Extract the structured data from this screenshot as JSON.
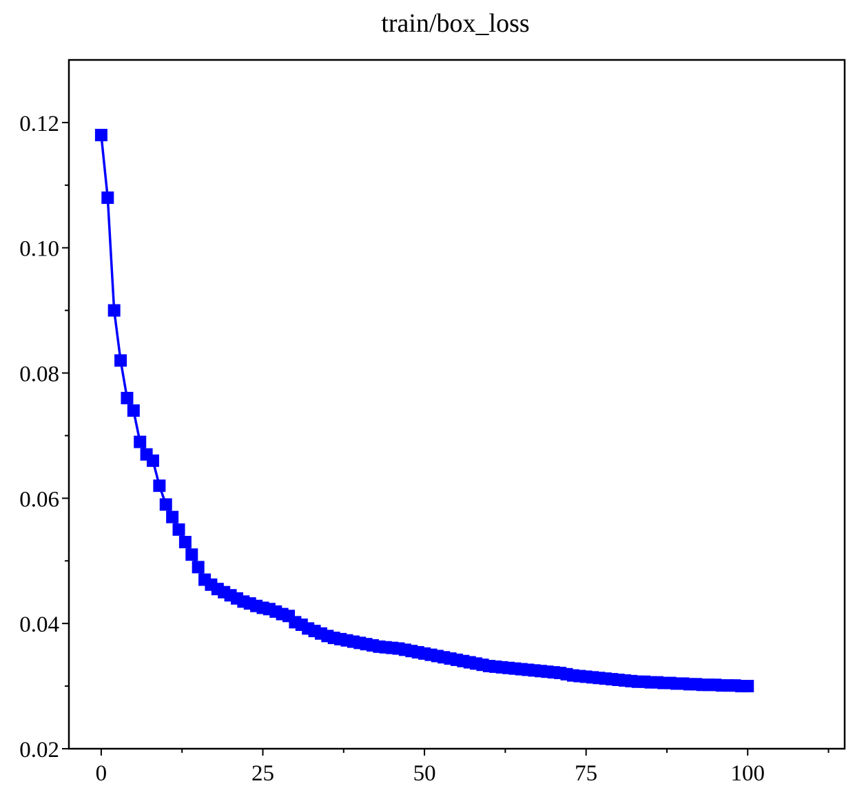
{
  "chart_data": {
    "type": "line",
    "title": "train/box_loss",
    "xlabel": "",
    "ylabel": "",
    "xlim": [
      -5,
      115
    ],
    "ylim": [
      0.02,
      0.13
    ],
    "x_ticks": [
      0,
      25,
      50,
      75,
      100
    ],
    "x_tick_labels": [
      "0",
      "25",
      "50",
      "75",
      "100"
    ],
    "y_ticks": [
      0.02,
      0.04,
      0.06,
      0.08,
      0.1,
      0.12
    ],
    "y_tick_labels": [
      "0.02",
      "0.04",
      "0.06",
      "0.08",
      "0.10",
      "0.12"
    ],
    "grid": false,
    "marker": "square",
    "series": [
      {
        "color": "#0000ff",
        "x": [
          0,
          1,
          2,
          3,
          4,
          5,
          6,
          7,
          8,
          9,
          10,
          11,
          12,
          13,
          14,
          15,
          16,
          17,
          18,
          19,
          20,
          21,
          22,
          23,
          24,
          25,
          26,
          27,
          28,
          29,
          30,
          31,
          32,
          33,
          34,
          35,
          36,
          37,
          38,
          39,
          40,
          41,
          42,
          43,
          44,
          45,
          46,
          47,
          48,
          49,
          50,
          51,
          52,
          53,
          54,
          55,
          56,
          57,
          58,
          59,
          60,
          61,
          62,
          63,
          64,
          65,
          66,
          67,
          68,
          69,
          70,
          71,
          72,
          73,
          74,
          75,
          76,
          77,
          78,
          79,
          80,
          81,
          82,
          83,
          84,
          85,
          86,
          87,
          88,
          89,
          90,
          91,
          92,
          93,
          94,
          95,
          96,
          97,
          98,
          99,
          100
        ],
        "y": [
          0.118,
          0.108,
          0.09,
          0.082,
          0.076,
          0.074,
          0.069,
          0.067,
          0.066,
          0.062,
          0.059,
          0.057,
          0.055,
          0.053,
          0.051,
          0.049,
          0.047,
          0.0462,
          0.0455,
          0.045,
          0.0445,
          0.044,
          0.0435,
          0.0432,
          0.0428,
          0.0425,
          0.0423,
          0.0419,
          0.0415,
          0.0412,
          0.0402,
          0.0398,
          0.0392,
          0.0388,
          0.0384,
          0.038,
          0.0377,
          0.0375,
          0.0373,
          0.0371,
          0.0369,
          0.0367,
          0.0365,
          0.0363,
          0.0362,
          0.0361,
          0.036,
          0.0358,
          0.0356,
          0.0354,
          0.0352,
          0.035,
          0.0348,
          0.0346,
          0.0344,
          0.0342,
          0.034,
          0.0338,
          0.0336,
          0.0334,
          0.0332,
          0.0331,
          0.033,
          0.0329,
          0.0328,
          0.0327,
          0.0326,
          0.0325,
          0.0324,
          0.0323,
          0.0322,
          0.0321,
          0.0319,
          0.0317,
          0.0316,
          0.0315,
          0.0314,
          0.0313,
          0.0312,
          0.0311,
          0.031,
          0.0309,
          0.0308,
          0.0307,
          0.0307,
          0.0306,
          0.0306,
          0.0305,
          0.0305,
          0.0304,
          0.0304,
          0.0303,
          0.0303,
          0.0302,
          0.0302,
          0.0302,
          0.0301,
          0.0301,
          0.0301,
          0.03,
          0.03
        ]
      }
    ]
  }
}
